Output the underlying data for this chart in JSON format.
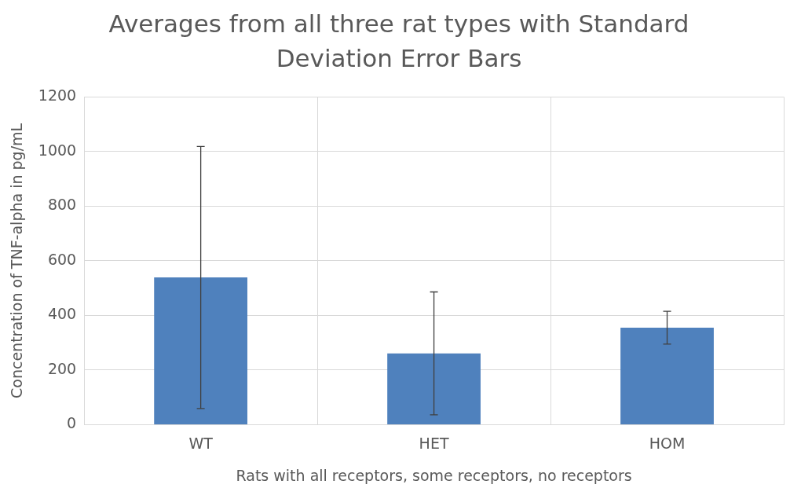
{
  "chart_data": {
    "type": "bar",
    "title": "Averages from all three rat types with Standard Deviation Error Bars",
    "xlabel": "Rats with all receptors, some receptors, no receptors",
    "ylabel": "Concentration of TNF-alpha in pg/mL",
    "categories": [
      "WT",
      "HET",
      "HOM"
    ],
    "values": [
      539,
      261,
      355
    ],
    "errors": [
      480,
      225,
      60
    ],
    "color": "#4f81bd",
    "ylim": [
      0,
      1200
    ],
    "yticks": [
      0,
      200,
      400,
      600,
      800,
      1000,
      1200
    ],
    "grid": true,
    "legend": false
  }
}
